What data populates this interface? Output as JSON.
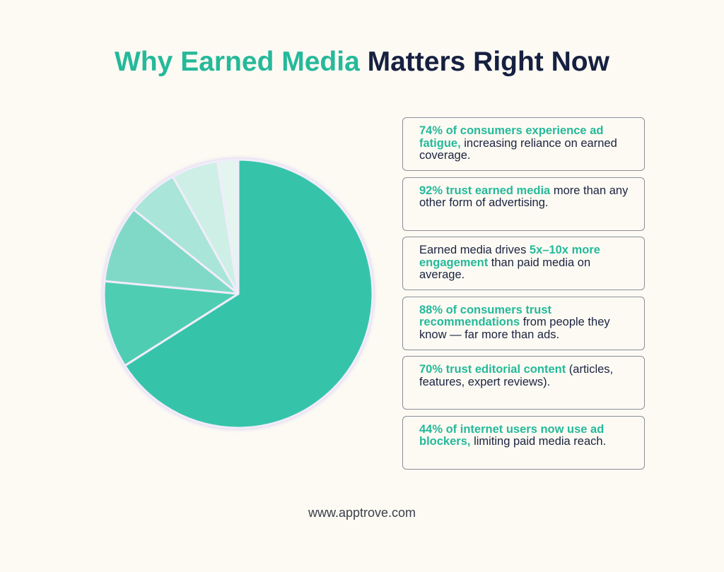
{
  "title_parts": [
    {
      "text": "Why Earned Media",
      "accent": true
    },
    {
      "text": "Matters Right Now",
      "accent": false
    }
  ],
  "chart_data": {
    "type": "pie",
    "values": [
      66,
      10.5,
      9.3,
      6.1,
      5.6,
      2.5
    ],
    "colors": [
      "#35c4aa",
      "#4fcdb3",
      "#80d9c6",
      "#a9e5d8",
      "#cdefe6",
      "#e4f5f0"
    ]
  },
  "cards": [
    [
      {
        "text": "74% of consumers experience ad fatigue,",
        "bold": true
      },
      {
        "text": "increasing reliance on earned coverage.",
        "bold": false
      }
    ],
    [
      {
        "text": "92% trust earned media",
        "bold": true
      },
      {
        "text": "more than any other form of advertising.",
        "bold": false
      }
    ],
    [
      {
        "text": "Earned media drives",
        "bold": false
      },
      {
        "text": "5x–10x more engagement",
        "bold": true
      },
      {
        "text": "than paid media on average.",
        "bold": false
      }
    ],
    [
      {
        "text": "88% of consumers trust recommendations",
        "bold": true
      },
      {
        "text": "from people they know — far more than ads.",
        "bold": false
      }
    ],
    [
      {
        "text": "70% trust editorial content",
        "bold": true
      },
      {
        "text": "(articles, features, expert reviews).",
        "bold": false
      }
    ],
    [
      {
        "text": "44% of internet users now use ad blockers,",
        "bold": true
      },
      {
        "text": "limiting paid media reach.",
        "bold": false
      }
    ]
  ],
  "footer": "www.apptrove.com"
}
